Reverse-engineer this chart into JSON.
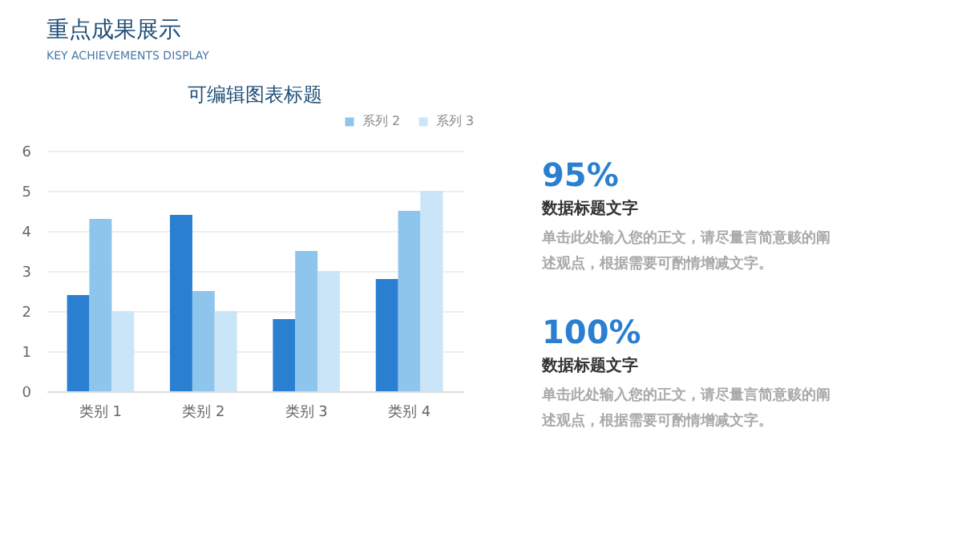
{
  "chart_data": [
    {
      "type": "other",
      "title": "重点成果展示",
      "subtitle": "KEY ACHIEVEMENTS DISPLAY"
    },
    {
      "type": "bar",
      "title": "可编辑图表标题",
      "categories": [
        "类别 1",
        "类别 2",
        "类别 3",
        "类别 4"
      ],
      "series": [
        {
          "color": "#2a7fd0",
          "values": [
            2.4,
            4.4,
            1.8,
            2.8
          ]
        },
        {
          "name": "系列 2",
          "color": "#8ec5ec",
          "values": [
            4.3,
            2.5,
            3.5,
            4.5
          ]
        },
        {
          "name": "系列 3",
          "color": "#cbe5f8",
          "values": [
            2.0,
            2.0,
            3.0,
            5.0
          ]
        }
      ],
      "ylim": [
        0,
        6
      ],
      "yticks": [
        0,
        1,
        2,
        3,
        4,
        5,
        6
      ],
      "grid": "y",
      "legend": "top right"
    },
    {
      "type": "other",
      "annotations": [
        "95%",
        "数据标题文字",
        "单击此处输入您的正文，请尽量言简意赅的阐述观点，根据需要可酌情增减文字。",
        "100%",
        "数据标题文字",
        "单击此处输入您的正文，请尽量言简意赅的阐述观点，根据需要可酌情增减文字。"
      ]
    }
  ]
}
